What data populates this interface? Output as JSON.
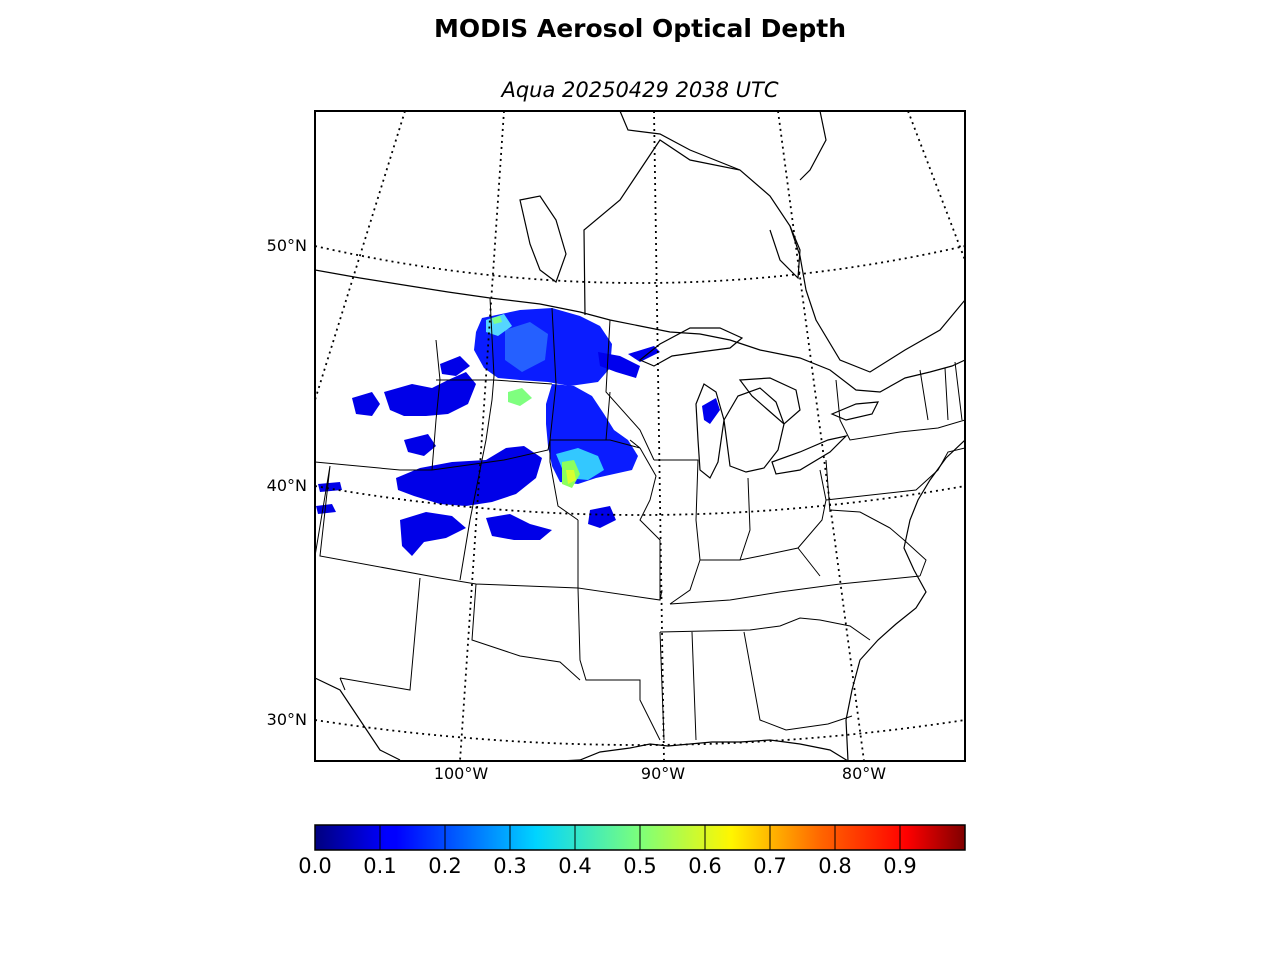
{
  "title": "MODIS Aerosol Optical Depth",
  "subtitle": "Aqua 20250429 2038 UTC",
  "map": {
    "projection": "lambert conformal conic",
    "extent_lon": [
      -107.3,
      -74.8
    ],
    "extent_lat": [
      28.0,
      55.5
    ],
    "coastline_color": "#000000",
    "graticule_style": "dotted",
    "lat_lines": [
      {
        "value": 50,
        "label": "50°N"
      },
      {
        "value": 40,
        "label": "40°N"
      },
      {
        "value": 30,
        "label": "30°N"
      }
    ],
    "lon_lines": [
      {
        "value": -100,
        "label": "100°W"
      },
      {
        "value": -90,
        "label": "90°W"
      },
      {
        "value": -80,
        "label": "80°W"
      }
    ],
    "aerosol_plume_region": "Northern Great Plains and Upper Midwest",
    "aod_observed_range": [
      0.0,
      0.6
    ]
  },
  "colorbar": {
    "colormap": "jet",
    "range": [
      0.0,
      1.0
    ],
    "tick_labels": [
      "0.0",
      "0.1",
      "0.2",
      "0.3",
      "0.4",
      "0.5",
      "0.6",
      "0.7",
      "0.8",
      "0.9"
    ]
  }
}
